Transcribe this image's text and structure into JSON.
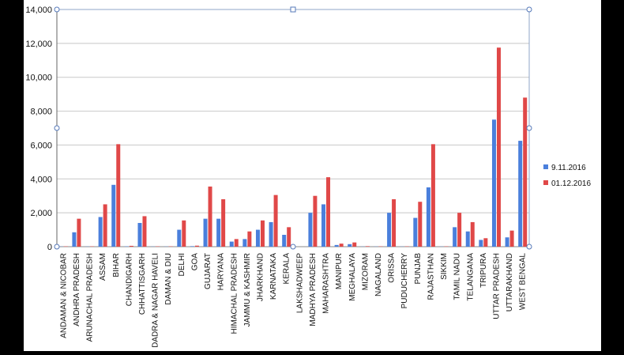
{
  "chart_data": {
    "type": "bar",
    "title": "",
    "xlabel": "",
    "ylabel": "",
    "ylim": [
      0,
      14000
    ],
    "yticks": [
      "0",
      "2,000",
      "4,000",
      "6,000",
      "8,000",
      "10,000",
      "12,000",
      "14,000"
    ],
    "ytick_values": [
      0,
      2000,
      4000,
      6000,
      8000,
      10000,
      12000,
      14000
    ],
    "grid": true,
    "legend": "right",
    "categories": [
      "ANDAMAN & NICOBAR",
      "ANDHRA PRADESH",
      "ARUNACHAL PRADESH",
      "ASSAM",
      "BIHAR",
      "CHANDIGARH",
      "CHHATTISGARH",
      "DADRA & NAGAR HAVELI",
      "DAMAN & DIU",
      "DELHI",
      "GOA",
      "GUJARAT",
      "HARYANA",
      "HIMACHAL PRADESH",
      "JAMMU & KASHMIR",
      "JHARKHAND",
      "KARNATAKA",
      "KERALA",
      "LAKSHADWEEP",
      "MADHYA PRADESH",
      "MAHARASHTRA",
      "MANIPUR",
      "MEGHALAYA",
      "MIZORAM",
      "NAGALAND",
      "ORISSA",
      "PUDUCHERRY",
      "PUNJAB",
      "RAJASTHAN",
      "SIKKIM",
      "TAMIL NADU",
      "TELANGANA",
      "TRIPURA",
      "UTTAR PRADESH",
      "UTTARAKHAND",
      "WEST BENGAL"
    ],
    "series": [
      {
        "name": "9.11.2016",
        "color": "#4a7fdc",
        "values": [
          10,
          850,
          10,
          1750,
          3650,
          20,
          1400,
          10,
          10,
          1000,
          30,
          1650,
          1650,
          300,
          450,
          1000,
          1450,
          700,
          0,
          2000,
          2500,
          100,
          150,
          10,
          10,
          2000,
          10,
          1700,
          3500,
          10,
          1150,
          900,
          400,
          7500,
          550,
          6250
        ]
      },
      {
        "name": "01.12.2016",
        "color": "#e04848",
        "values": [
          20,
          1650,
          20,
          2500,
          6050,
          50,
          1800,
          20,
          20,
          1550,
          60,
          3550,
          2800,
          450,
          900,
          1550,
          3050,
          1150,
          0,
          3000,
          4100,
          180,
          250,
          30,
          20,
          2800,
          20,
          2650,
          6050,
          20,
          2000,
          1450,
          500,
          11750,
          950,
          8800
        ]
      }
    ]
  }
}
